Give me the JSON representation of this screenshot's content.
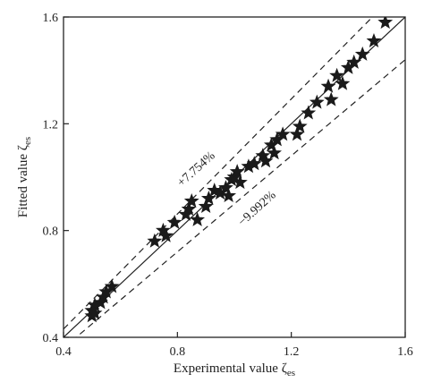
{
  "chart_data": {
    "type": "scatter",
    "xlabel": "Experimental value ζ",
    "xlabel_sub": "es",
    "ylabel": "Fitted value ζ",
    "ylabel_sub": "es",
    "xlim": [
      0.4,
      1.6
    ],
    "ylim": [
      0.4,
      1.6
    ],
    "xticks": [
      "0.4",
      "0.8",
      "1.2",
      "1.6"
    ],
    "yticks": [
      "0.4",
      "0.8",
      "1.2",
      "1.6"
    ],
    "xtick_values": [
      0.4,
      0.8,
      1.2,
      1.6
    ],
    "ytick_values": [
      0.4,
      0.8,
      1.2,
      1.6
    ],
    "grid": false,
    "marker": "star",
    "marker_color": "#1a1a1a",
    "reference_line": {
      "style": "solid",
      "slope": 1.0
    },
    "bands": [
      {
        "label": "+7.754%",
        "factor": 1.07754,
        "style": "dashed"
      },
      {
        "label": "−9.992%",
        "factor": 0.90008,
        "style": "dashed"
      }
    ],
    "points": [
      [
        0.5,
        0.48
      ],
      [
        0.5,
        0.5
      ],
      [
        0.51,
        0.52
      ],
      [
        0.51,
        0.49
      ],
      [
        0.53,
        0.53
      ],
      [
        0.54,
        0.55
      ],
      [
        0.55,
        0.57
      ],
      [
        0.57,
        0.59
      ],
      [
        0.72,
        0.76
      ],
      [
        0.75,
        0.8
      ],
      [
        0.76,
        0.78
      ],
      [
        0.79,
        0.83
      ],
      [
        0.83,
        0.86
      ],
      [
        0.84,
        0.88
      ],
      [
        0.85,
        0.91
      ],
      [
        0.87,
        0.84
      ],
      [
        0.9,
        0.89
      ],
      [
        0.91,
        0.92
      ],
      [
        0.93,
        0.95
      ],
      [
        0.95,
        0.94
      ],
      [
        0.97,
        0.96
      ],
      [
        0.98,
        0.93
      ],
      [
        0.99,
        0.99
      ],
      [
        1.0,
        1.0
      ],
      [
        1.01,
        1.02
      ],
      [
        1.02,
        0.98
      ],
      [
        1.05,
        1.04
      ],
      [
        1.07,
        1.05
      ],
      [
        1.1,
        1.08
      ],
      [
        1.11,
        1.06
      ],
      [
        1.13,
        1.12
      ],
      [
        1.14,
        1.09
      ],
      [
        1.15,
        1.14
      ],
      [
        1.17,
        1.16
      ],
      [
        1.22,
        1.16
      ],
      [
        1.23,
        1.19
      ],
      [
        1.26,
        1.24
      ],
      [
        1.29,
        1.28
      ],
      [
        1.33,
        1.34
      ],
      [
        1.34,
        1.29
      ],
      [
        1.36,
        1.38
      ],
      [
        1.38,
        1.35
      ],
      [
        1.4,
        1.41
      ],
      [
        1.42,
        1.43
      ],
      [
        1.45,
        1.46
      ],
      [
        1.49,
        1.51
      ],
      [
        1.53,
        1.58
      ],
      [
        1.61,
        1.63
      ]
    ]
  }
}
